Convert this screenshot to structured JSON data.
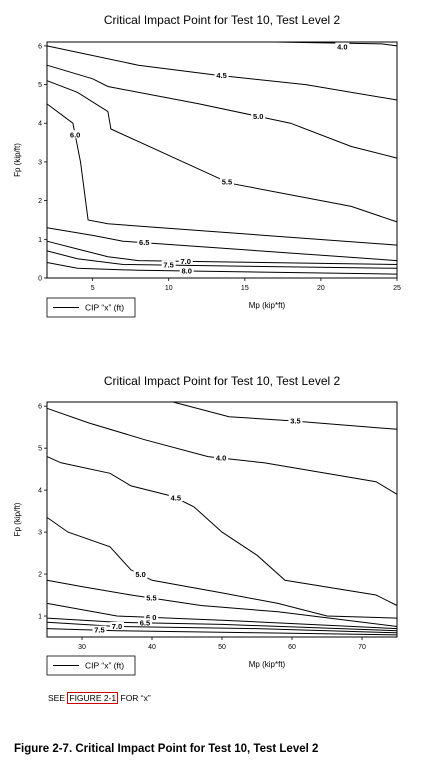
{
  "figure": {
    "caption": "Figure 2-7. Critical Impact Point for Test 10, Test Level 2",
    "note_prefix": "SEE ",
    "note_link": "FIGURE 2-1",
    "note_suffix": " FOR “x”"
  },
  "chart_data": [
    {
      "type": "contour",
      "title": "Critical Impact Point for Test 10, Test Level 2",
      "xlabel": "Mp (kip*ft)",
      "ylabel": "Fp (kip/ft)",
      "legend_label": "CIP “x” (ft)",
      "legend_position": "bottom-left",
      "xlim": [
        2,
        25
      ],
      "ylim": [
        0,
        6.1
      ],
      "xticks": [
        5,
        10,
        15,
        20,
        25
      ],
      "yticks": [
        0,
        1,
        2,
        3,
        4,
        5,
        6
      ],
      "grid": false,
      "contours": [
        {
          "level": "4.0",
          "points": [
            [
              17,
              6.1
            ],
            [
              24,
              6.05
            ],
            [
              25,
              6.0
            ]
          ]
        },
        {
          "level": "4.5",
          "points": [
            [
              2,
              6.0
            ],
            [
              8,
              5.5
            ],
            [
              13,
              5.25
            ],
            [
              19,
              5.0
            ],
            [
              25,
              4.6
            ]
          ]
        },
        {
          "level": "5.0",
          "points": [
            [
              2,
              5.5
            ],
            [
              5,
              5.15
            ],
            [
              6,
              4.95
            ],
            [
              12,
              4.5
            ],
            [
              18,
              4.0
            ],
            [
              22,
              3.4
            ],
            [
              25,
              3.1
            ]
          ]
        },
        {
          "level": "5.5",
          "points": [
            [
              2,
              5.1
            ],
            [
              4,
              4.8
            ],
            [
              6,
              4.3
            ],
            [
              6.2,
              3.85
            ],
            [
              14,
              2.45
            ],
            [
              22,
              1.85
            ],
            [
              25,
              1.45
            ]
          ]
        },
        {
          "level": "6.0",
          "points": [
            [
              2,
              4.5
            ],
            [
              3.7,
              4.0
            ],
            [
              4.2,
              3.0
            ],
            [
              4.7,
              1.5
            ],
            [
              6,
              1.4
            ],
            [
              25,
              0.85
            ]
          ]
        },
        {
          "level": "6.5",
          "points": [
            [
              2,
              1.3
            ],
            [
              5,
              1.1
            ],
            [
              7,
              0.95
            ],
            [
              25,
              0.45
            ]
          ]
        },
        {
          "level": "7.0",
          "points": [
            [
              2,
              0.95
            ],
            [
              4,
              0.75
            ],
            [
              6,
              0.55
            ],
            [
              8,
              0.45
            ],
            [
              25,
              0.35
            ]
          ]
        },
        {
          "level": "7.5",
          "points": [
            [
              2,
              0.7
            ],
            [
              4,
              0.5
            ],
            [
              7,
              0.35
            ],
            [
              25,
              0.25
            ]
          ]
        },
        {
          "level": "8.0",
          "points": [
            [
              2,
              0.4
            ],
            [
              4,
              0.25
            ],
            [
              8,
              0.2
            ],
            [
              25,
              0.1
            ]
          ]
        }
      ]
    },
    {
      "type": "contour",
      "title": "Critical Impact Point for Test 10, Test Level 2",
      "xlabel": "Mp (kip*ft)",
      "ylabel": "Fp (kip/ft)",
      "legend_label": "CIP “x” (ft)",
      "legend_position": "bottom-left",
      "xlim": [
        25,
        75
      ],
      "ylim": [
        0.5,
        6.1
      ],
      "xticks": [
        30,
        40,
        50,
        60,
        70
      ],
      "yticks": [
        1,
        2,
        3,
        4,
        5,
        6
      ],
      "grid": false,
      "contours": [
        {
          "level": "3.5",
          "points": [
            [
              43,
              6.1
            ],
            [
              51,
              5.75
            ],
            [
              60,
              5.65
            ],
            [
              75,
              5.45
            ]
          ]
        },
        {
          "level": "4.0",
          "points": [
            [
              25,
              5.95
            ],
            [
              31,
              5.6
            ],
            [
              39,
              5.2
            ],
            [
              48,
              4.8
            ],
            [
              56,
              4.65
            ],
            [
              72,
              4.2
            ],
            [
              75,
              3.9
            ]
          ]
        },
        {
          "level": "4.5",
          "points": [
            [
              25,
              4.8
            ],
            [
              27,
              4.65
            ],
            [
              34,
              4.4
            ],
            [
              37,
              4.1
            ],
            [
              43,
              3.85
            ],
            [
              46,
              3.6
            ],
            [
              50,
              3.0
            ],
            [
              55,
              2.45
            ],
            [
              59,
              1.85
            ],
            [
              72,
              1.5
            ],
            [
              75,
              1.25
            ]
          ]
        },
        {
          "level": "5.0",
          "points": [
            [
              25,
              3.35
            ],
            [
              28,
              3.0
            ],
            [
              34,
              2.65
            ],
            [
              37,
              2.1
            ],
            [
              40,
              1.85
            ],
            [
              50,
              1.55
            ],
            [
              58,
              1.3
            ],
            [
              65,
              1.0
            ],
            [
              75,
              0.95
            ]
          ]
        },
        {
          "level": "5.5",
          "points": [
            [
              25,
              1.85
            ],
            [
              30,
              1.7
            ],
            [
              37,
              1.5
            ],
            [
              47,
              1.25
            ],
            [
              58,
              1.1
            ],
            [
              75,
              0.75
            ]
          ]
        },
        {
          "level": "6.0",
          "points": [
            [
              25,
              1.3
            ],
            [
              35,
              1.0
            ],
            [
              50,
              0.9
            ],
            [
              75,
              0.7
            ]
          ]
        },
        {
          "level": "6.5",
          "points": [
            [
              25,
              0.95
            ],
            [
              35,
              0.85
            ],
            [
              50,
              0.8
            ],
            [
              75,
              0.65
            ]
          ]
        },
        {
          "level": "7.0",
          "points": [
            [
              25,
              0.85
            ],
            [
              35,
              0.75
            ],
            [
              55,
              0.7
            ],
            [
              75,
              0.6
            ]
          ]
        },
        {
          "level": "7.5",
          "points": [
            [
              25,
              0.7
            ],
            [
              35,
              0.65
            ],
            [
              55,
              0.6
            ],
            [
              75,
              0.55
            ]
          ]
        }
      ]
    }
  ]
}
